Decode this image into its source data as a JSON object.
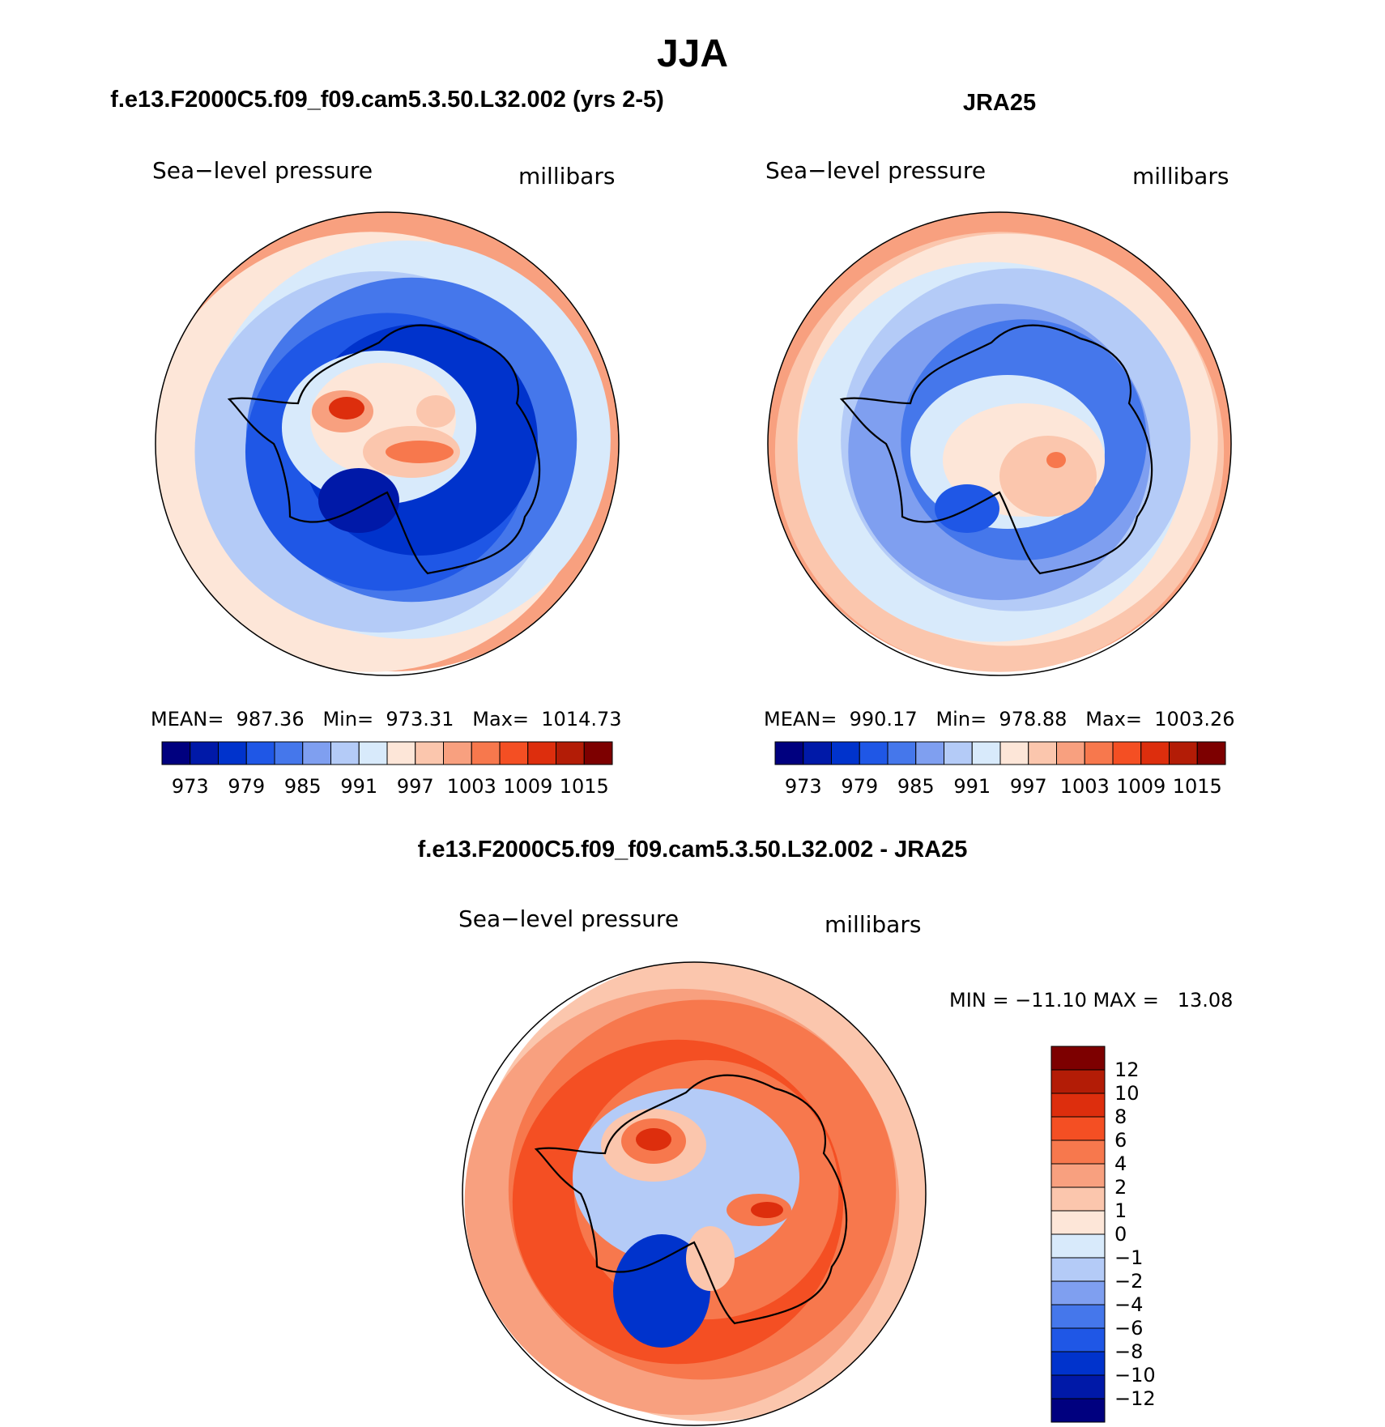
{
  "figure": {
    "title": "JJA"
  },
  "chart_data": [
    {
      "type": "heatmap",
      "projection": "south-polar-stereographic",
      "title": "f.e13.F2000C5.f09_f09.cam5.3.50.L32.002 (yrs 2-5)",
      "variable": "Sea−level pressure",
      "units": "millibars",
      "stats": {
        "mean": 987.36,
        "min": 973.31,
        "max": 1014.73
      },
      "stats_text": "MEAN=  987.36   Min=  973.31   Max=  1014.73",
      "colorbar": {
        "orientation": "horizontal",
        "colors": [
          "#00007f",
          "#0019a8",
          "#0033cc",
          "#1f57e6",
          "#4577eb",
          "#7f9ff0",
          "#b4cbf7",
          "#d8eafb",
          "#fde6d8",
          "#fbc6ad",
          "#f8a07f",
          "#f7784d",
          "#f44f23",
          "#dd2e0d",
          "#b31c06",
          "#7d0000"
        ],
        "tick_labels": [
          "973",
          "979",
          "985",
          "991",
          "997",
          "1003",
          "1009",
          "1015"
        ]
      }
    },
    {
      "type": "heatmap",
      "projection": "south-polar-stereographic",
      "title": "JRA25",
      "variable": "Sea−level pressure",
      "units": "millibars",
      "stats": {
        "mean": 990.17,
        "min": 978.88,
        "max": 1003.26
      },
      "stats_text": "MEAN=  990.17   Min=  978.88   Max=  1003.26",
      "colorbar": {
        "orientation": "horizontal",
        "colors": [
          "#00007f",
          "#0019a8",
          "#0033cc",
          "#1f57e6",
          "#4577eb",
          "#7f9ff0",
          "#b4cbf7",
          "#d8eafb",
          "#fde6d8",
          "#fbc6ad",
          "#f8a07f",
          "#f7784d",
          "#f44f23",
          "#dd2e0d",
          "#b31c06",
          "#7d0000"
        ],
        "tick_labels": [
          "973",
          "979",
          "985",
          "991",
          "997",
          "1003",
          "1009",
          "1015"
        ]
      }
    },
    {
      "type": "heatmap",
      "projection": "south-polar-stereographic",
      "title": "f.e13.F2000C5.f09_f09.cam5.3.50.L32.002 - JRA25",
      "variable": "Sea−level pressure",
      "units": "millibars",
      "stats": {
        "min": -11.1,
        "max": 13.08
      },
      "stats_text": "MIN = −11.10 MAX =   13.08",
      "colorbar": {
        "orientation": "vertical",
        "colors": [
          "#7d0000",
          "#b31c06",
          "#dd2e0d",
          "#f44f23",
          "#f7784d",
          "#f8a07f",
          "#fbc6ad",
          "#fde6d8",
          "#d8eafb",
          "#b4cbf7",
          "#7f9ff0",
          "#4577eb",
          "#1f57e6",
          "#0033cc",
          "#0019a8",
          "#00007f"
        ],
        "tick_labels": [
          "12",
          "10",
          "8",
          "6",
          "4",
          "2",
          "1",
          "0",
          "−1",
          "−2",
          "−4",
          "−6",
          "−8",
          "−10",
          "−12"
        ]
      }
    }
  ]
}
